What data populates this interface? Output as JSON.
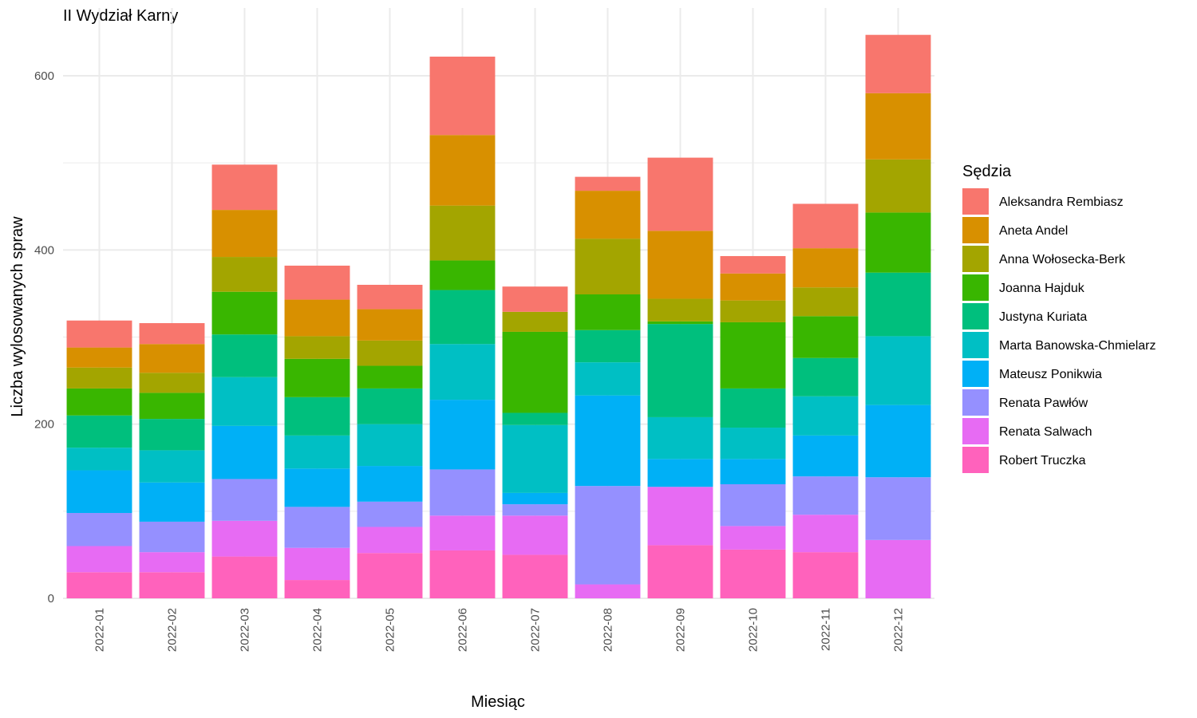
{
  "chart_data": {
    "type": "bar",
    "stacked": true,
    "title": "II Wydział Karny",
    "xlabel": "Miesiąc",
    "ylabel": "Liczba wylosowanych spraw",
    "ylim": [
      -5,
      655
    ],
    "yticks": [
      0,
      200,
      400,
      600
    ],
    "grid": true,
    "legend_title": "Sędzia",
    "legend_position": "right",
    "categories": [
      "2022-01",
      "2022-02",
      "2022-03",
      "2022-04",
      "2022-05",
      "2022-06",
      "2022-07",
      "2022-08",
      "2022-09",
      "2022-10",
      "2022-11",
      "2022-12"
    ],
    "series": [
      {
        "name": "Aleksandra Rembiasz",
        "color": "#F8766D",
        "values": [
          31,
          24,
          52,
          39,
          28,
          90,
          29,
          16,
          84,
          20,
          51,
          67
        ]
      },
      {
        "name": "Aneta Andel",
        "color": "#D89000",
        "values": [
          23,
          33,
          54,
          42,
          36,
          81,
          0,
          55,
          78,
          31,
          45,
          76
        ]
      },
      {
        "name": "Anna Wołosecka-Berk",
        "color": "#A3A500",
        "values": [
          24,
          23,
          40,
          26,
          29,
          63,
          23,
          64,
          26,
          25,
          33,
          61
        ]
      },
      {
        "name": "Joanna Hajduk",
        "color": "#39B600",
        "values": [
          31,
          30,
          49,
          44,
          26,
          34,
          93,
          41,
          3,
          76,
          48,
          69
        ]
      },
      {
        "name": "Justyna Kuriata",
        "color": "#00BF7D",
        "values": [
          37,
          36,
          49,
          44,
          41,
          62,
          14,
          37,
          107,
          45,
          44,
          73
        ]
      },
      {
        "name": "Marta Banowska-Chmielarz",
        "color": "#00BFC4",
        "values": [
          26,
          37,
          56,
          38,
          48,
          64,
          78,
          38,
          48,
          36,
          45,
          79
        ]
      },
      {
        "name": "Mateusz Ponikwia",
        "color": "#00B0F6",
        "values": [
          49,
          45,
          61,
          44,
          41,
          80,
          13,
          104,
          32,
          29,
          47,
          83
        ]
      },
      {
        "name": "Renata Pawłów",
        "color": "#9590FF",
        "values": [
          38,
          35,
          48,
          47,
          29,
          53,
          13,
          113,
          0,
          48,
          44,
          72
        ]
      },
      {
        "name": "Renata Salwach",
        "color": "#E76BF3",
        "values": [
          30,
          23,
          41,
          37,
          30,
          40,
          45,
          16,
          67,
          27,
          43,
          67
        ]
      },
      {
        "name": "Robert Truczka",
        "color": "#FF62BC",
        "values": [
          30,
          30,
          48,
          21,
          52,
          55,
          50,
          0,
          61,
          56,
          53,
          0
        ]
      }
    ]
  }
}
